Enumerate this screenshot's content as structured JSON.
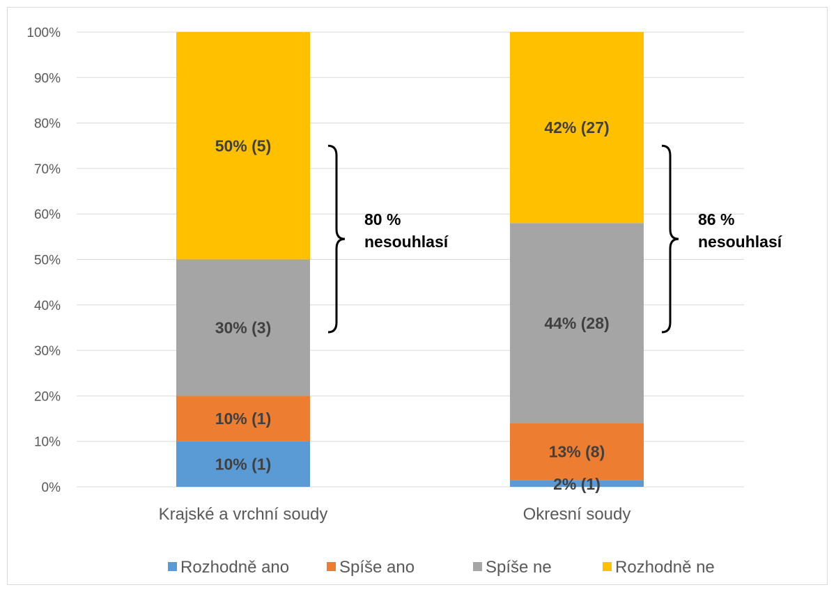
{
  "chart_data": {
    "type": "bar",
    "stacked": true,
    "percent": true,
    "categories": [
      "Krajské a vrchní soudy",
      "Okresní soudy"
    ],
    "series": [
      {
        "name": "Rozhodně ano",
        "color": "#5B9BD5",
        "values": [
          10,
          1.5
        ],
        "labels": [
          "10% (1)",
          "2% (1)"
        ]
      },
      {
        "name": "Spíše ano",
        "color": "#ED7D31",
        "values": [
          10,
          12.5
        ],
        "labels": [
          "10% (1)",
          "13% (8)"
        ]
      },
      {
        "name": "Spíše ne",
        "color": "#A5A5A5",
        "values": [
          30,
          44
        ],
        "labels": [
          "30% (3)",
          "44% (28)"
        ]
      },
      {
        "name": "Rozhodně ne",
        "color": "#FFC000",
        "values": [
          50,
          42
        ],
        "labels": [
          "50% (5)",
          "42% (27)"
        ]
      }
    ],
    "yticks": [
      "0%",
      "10%",
      "20%",
      "30%",
      "40%",
      "50%",
      "60%",
      "70%",
      "80%",
      "90%",
      "100%"
    ],
    "ylim": [
      0,
      100
    ],
    "grid": true,
    "legend_position": "bottom",
    "annotations": [
      {
        "category": 0,
        "from": 34,
        "to": 75,
        "line1": "80 %",
        "line2": "nesouhlasí"
      },
      {
        "category": 1,
        "from": 34,
        "to": 75,
        "line1": "86 %",
        "line2": "nesouhlasí"
      }
    ]
  }
}
